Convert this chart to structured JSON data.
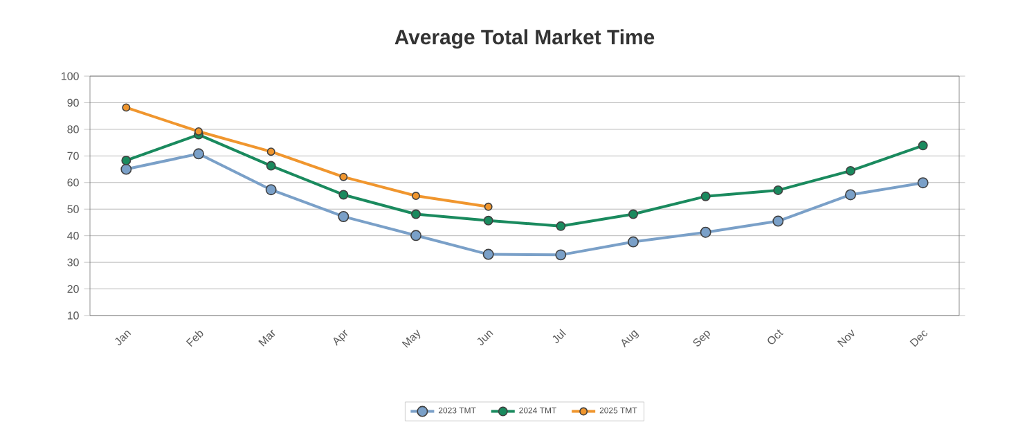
{
  "chart_data": {
    "type": "line",
    "title": "Average Total Market Time",
    "categories": [
      "Jan",
      "Feb",
      "Mar",
      "Apr",
      "May",
      "Jun",
      "Jul",
      "Aug",
      "Sep",
      "Oct",
      "Nov",
      "Dec"
    ],
    "series": [
      {
        "name": "2023 TMT",
        "color": "#7aa0c8",
        "values": [
          65,
          70.8,
          57.3,
          47.2,
          40.1,
          33,
          32.8,
          37.7,
          41.3,
          45.5,
          55.4,
          59.9
        ]
      },
      {
        "name": "2024 TMT",
        "color": "#1a8a5e",
        "values": [
          68.3,
          78,
          66.3,
          55.4,
          48.1,
          45.7,
          43.6,
          48.1,
          54.8,
          57.1,
          64.4,
          73.9
        ]
      },
      {
        "name": "2025 TMT",
        "color": "#f0962e",
        "values": [
          88.2,
          79.2,
          71.6,
          62.1,
          55,
          50.9,
          null,
          null,
          null,
          null,
          null,
          null
        ]
      }
    ],
    "ylim": [
      10,
      100
    ],
    "yticks": [
      10,
      20,
      30,
      40,
      50,
      60,
      70,
      80,
      90,
      100
    ],
    "grid": "y",
    "legend": "bottom",
    "marker": "circle",
    "line_style": "solid"
  }
}
